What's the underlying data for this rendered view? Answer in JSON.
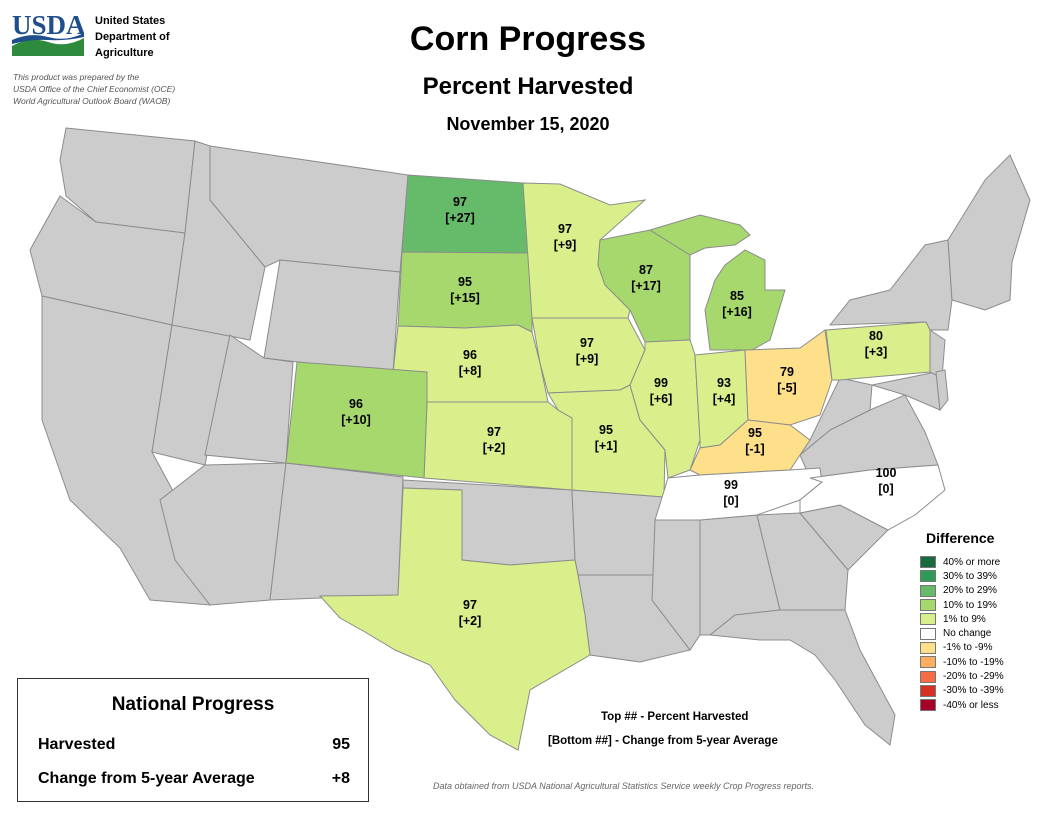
{
  "header": {
    "logo_text": "USDA",
    "agency_lines": [
      "United States",
      "Department of",
      "Agriculture"
    ],
    "prepared_lines": [
      "This product was prepared by the",
      "USDA Office of the Chief Economist (OCE)",
      "World Agricultural Outlook Board (WAOB)"
    ],
    "title": "Corn Progress",
    "subtitle": "Percent Harvested",
    "date": "November 15, 2020"
  },
  "colors": {
    "nodata": "#cccccc",
    "state_border": "#8c8c8c",
    "usda_blue": "#1f4e8c",
    "usda_green": "#2e8b3e"
  },
  "states": [
    {
      "id": "ND",
      "value": "97",
      "change": "[+27]",
      "category": "20to29"
    },
    {
      "id": "SD",
      "value": "95",
      "change": "[+15]",
      "category": "10to19"
    },
    {
      "id": "NE",
      "value": "96",
      "change": "[+8]",
      "category": "1to9"
    },
    {
      "id": "KS",
      "value": "97",
      "change": "[+2]",
      "category": "1to9"
    },
    {
      "id": "CO",
      "value": "96",
      "change": "[+10]",
      "category": "10to19"
    },
    {
      "id": "TX",
      "value": "97",
      "change": "[+2]",
      "category": "1to9"
    },
    {
      "id": "MN",
      "value": "97",
      "change": "[+9]",
      "category": "1to9"
    },
    {
      "id": "IA",
      "value": "97",
      "change": "[+9]",
      "category": "1to9"
    },
    {
      "id": "MO",
      "value": "95",
      "change": "[+1]",
      "category": "1to9"
    },
    {
      "id": "WI",
      "value": "87",
      "change": "[+17]",
      "category": "10to19"
    },
    {
      "id": "IL",
      "value": "99",
      "change": "[+6]",
      "category": "1to9"
    },
    {
      "id": "MI",
      "value": "85",
      "change": "[+16]",
      "category": "10to19"
    },
    {
      "id": "IN",
      "value": "93",
      "change": "[+4]",
      "category": "1to9"
    },
    {
      "id": "OH",
      "value": "79",
      "change": "[-5]",
      "category": "neg1to9"
    },
    {
      "id": "KY",
      "value": "95",
      "change": "[-1]",
      "category": "neg1to9"
    },
    {
      "id": "TN",
      "value": "99",
      "change": "[0]",
      "category": "nochange"
    },
    {
      "id": "NC",
      "value": "100",
      "change": "[0]",
      "category": "nochange"
    },
    {
      "id": "PA",
      "value": "80",
      "change": "[+3]",
      "category": "1to9"
    }
  ],
  "legend": {
    "title": "Difference",
    "items": [
      {
        "key": "40plus",
        "label": "40% or more",
        "color": "#1a6b3c"
      },
      {
        "key": "30to39",
        "label": "30% to 39%",
        "color": "#2e9a55"
      },
      {
        "key": "20to29",
        "label": "20% to 29%",
        "color": "#66bb6a"
      },
      {
        "key": "10to19",
        "label": "10% to 19%",
        "color": "#a6d86e"
      },
      {
        "key": "1to9",
        "label": "1% to 9%",
        "color": "#d9ef8b"
      },
      {
        "key": "nochange",
        "label": "No change",
        "color": "#ffffff"
      },
      {
        "key": "neg1to9",
        "label": "-1% to -9%",
        "color": "#fee08b"
      },
      {
        "key": "neg10to19",
        "label": "-10% to -19%",
        "color": "#fdae61"
      },
      {
        "key": "neg20to29",
        "label": "-20% to -29%",
        "color": "#f46d43"
      },
      {
        "key": "neg30to39",
        "label": "-30% to -39%",
        "color": "#d73027"
      },
      {
        "key": "neg40plus",
        "label": "-40% or less",
        "color": "#a50026"
      }
    ]
  },
  "national": {
    "title": "National Progress",
    "rows": [
      {
        "label": "Harvested",
        "value": "95"
      },
      {
        "label": "Change from 5-year Average",
        "value": "+8"
      }
    ]
  },
  "key_notes": [
    "Top ## - Percent Harvested",
    "[Bottom ##] - Change from 5-year Average"
  ],
  "source": "Data obtained from USDA National Agricultural Statistics Service weekly Crop Progress reports."
}
